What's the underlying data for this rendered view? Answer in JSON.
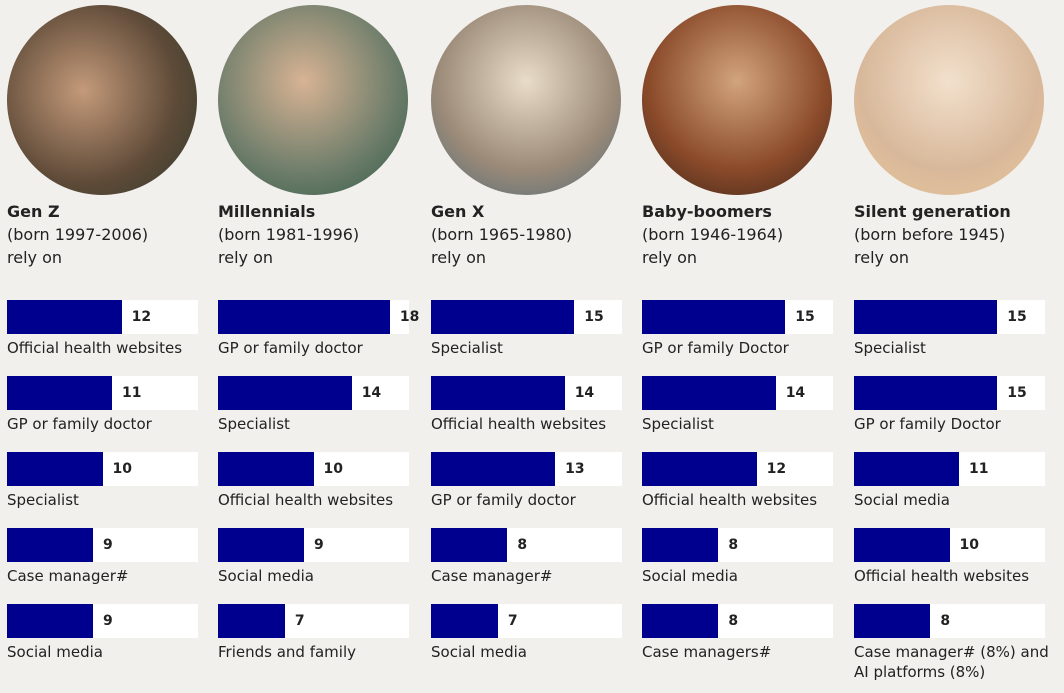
{
  "chart_data": [
    {
      "type": "bar",
      "title": "Gen Z",
      "subtitle": "(born 1997-2006)",
      "note": "rely on",
      "color": "#00008f",
      "xlim": [
        0,
        20
      ],
      "categories": [
        "Official health websites",
        "GP or family doctor",
        "Specialist",
        "Case manager#",
        "Social media"
      ],
      "values": [
        12,
        11,
        10,
        9,
        9
      ]
    },
    {
      "type": "bar",
      "title": "Millennials",
      "subtitle": "(born 1981-1996)",
      "note": "rely on",
      "color": "#00008f",
      "xlim": [
        0,
        20
      ],
      "categories": [
        "GP or family doctor",
        "Specialist",
        "Official health websites",
        "Social media",
        "Friends and family"
      ],
      "values": [
        18,
        14,
        10,
        9,
        7
      ]
    },
    {
      "type": "bar",
      "title": "Gen X",
      "subtitle": "(born 1965-1980)",
      "note": "rely on",
      "color": "#00008f",
      "xlim": [
        0,
        20
      ],
      "categories": [
        "Specialist",
        "Official health websites",
        "GP or family doctor",
        "Case manager#",
        "Social media"
      ],
      "values": [
        15,
        14,
        13,
        8,
        7
      ]
    },
    {
      "type": "bar",
      "title": "Baby-boomers",
      "subtitle": "(born 1946-1964)",
      "note": "rely on",
      "color": "#00008f",
      "xlim": [
        0,
        20
      ],
      "categories": [
        "GP or family Doctor",
        "Specialist",
        "Official health websites",
        "Social media",
        "Case managers#"
      ],
      "values": [
        15,
        14,
        12,
        8,
        8
      ]
    },
    {
      "type": "bar",
      "title": "Silent generation",
      "subtitle": "(born before 1945)",
      "note": "rely on",
      "color": "#00008f",
      "xlim": [
        0,
        20
      ],
      "categories": [
        "Specialist",
        "GP or family Doctor",
        "Social media",
        "Official health websites",
        "Case manager# (8%) and AI platforms (8%)"
      ],
      "values": [
        15,
        15,
        11,
        10,
        8
      ]
    }
  ]
}
